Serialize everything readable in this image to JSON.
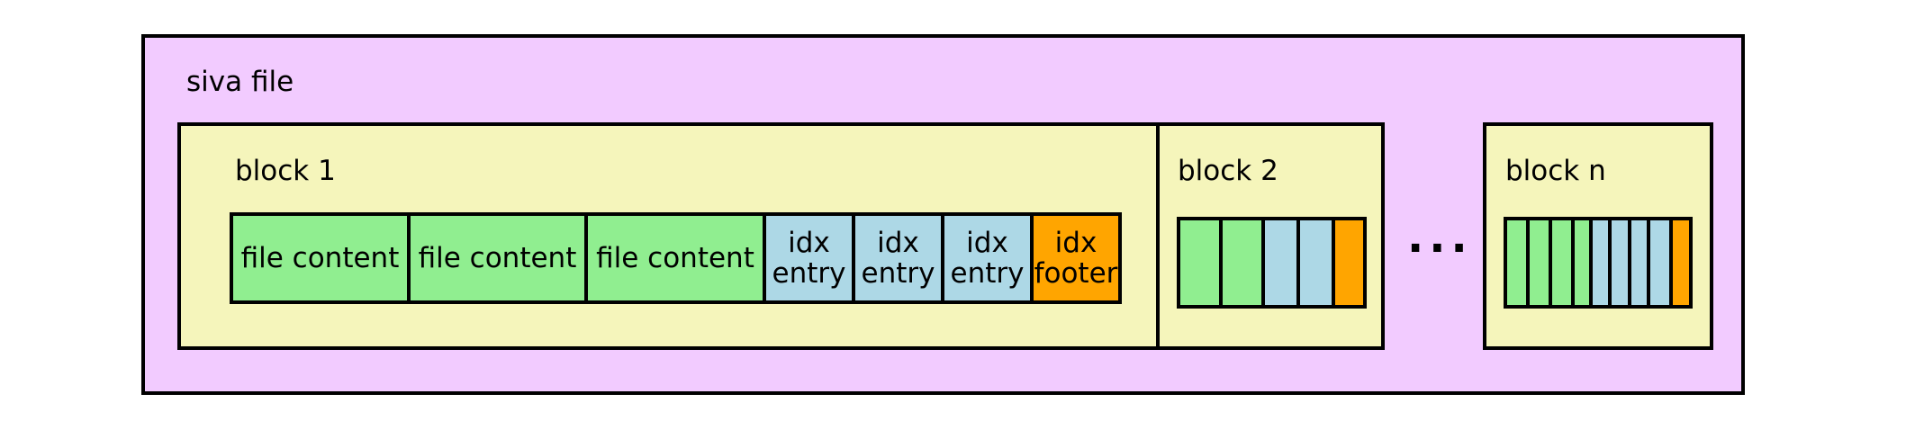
{
  "colors": {
    "siva_bg": "#f2cbff",
    "block_bg": "#f5f5bb",
    "content": "#90ee90",
    "entry": "#add8e6",
    "footer": "#ffa500",
    "border": "#000000"
  },
  "siva": {
    "label": "siva file"
  },
  "blocks": {
    "b1": {
      "label": "block 1",
      "cells": {
        "c1": "file content",
        "c2": "file content",
        "c3": "file content",
        "e1_a": "idx",
        "e1_b": "entry",
        "e2_a": "idx",
        "e2_b": "entry",
        "e3_a": "idx",
        "e3_b": "entry",
        "f_a": "idx",
        "f_b": "footer"
      }
    },
    "b2": {
      "label": "block 2"
    },
    "bn": {
      "label": "block n"
    }
  },
  "ellipsis": "..."
}
